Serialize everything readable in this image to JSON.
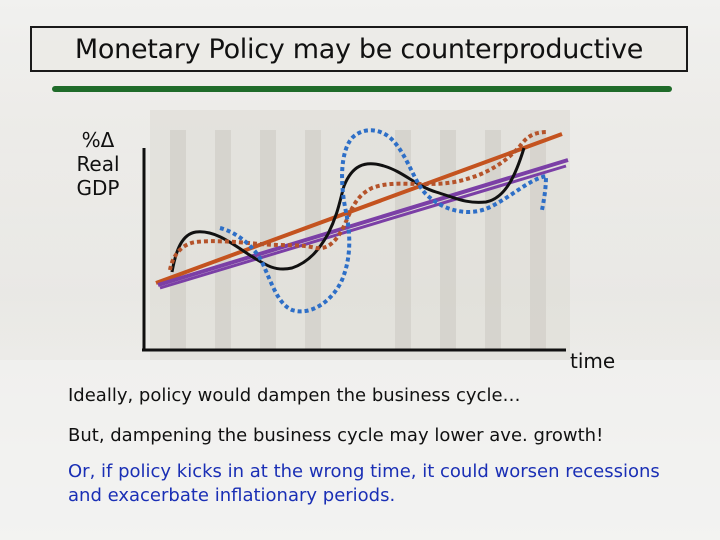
{
  "slide": {
    "title": "Monetary Policy may be counterproductive",
    "y_label_lines": [
      "%Δ",
      "Real",
      "GDP"
    ],
    "x_label": "time",
    "paragraphs": [
      "Ideally, policy would dampen the business cycle…",
      "But, dampening the business cycle may lower ave. growth!",
      "Or, if policy kicks in at the wrong time, it could worsen recessions and exacerbate inflationary periods."
    ]
  },
  "colors": {
    "title_rule": "#1f6b2a",
    "cycle_actual": "#111111",
    "cycle_dampened": "#b5532a",
    "cycle_worsened": "#2e6fc7",
    "trend_high": "#c4531f",
    "trend_low": "#7b3fa6",
    "highlight_text": "#1a2fb5"
  }
}
